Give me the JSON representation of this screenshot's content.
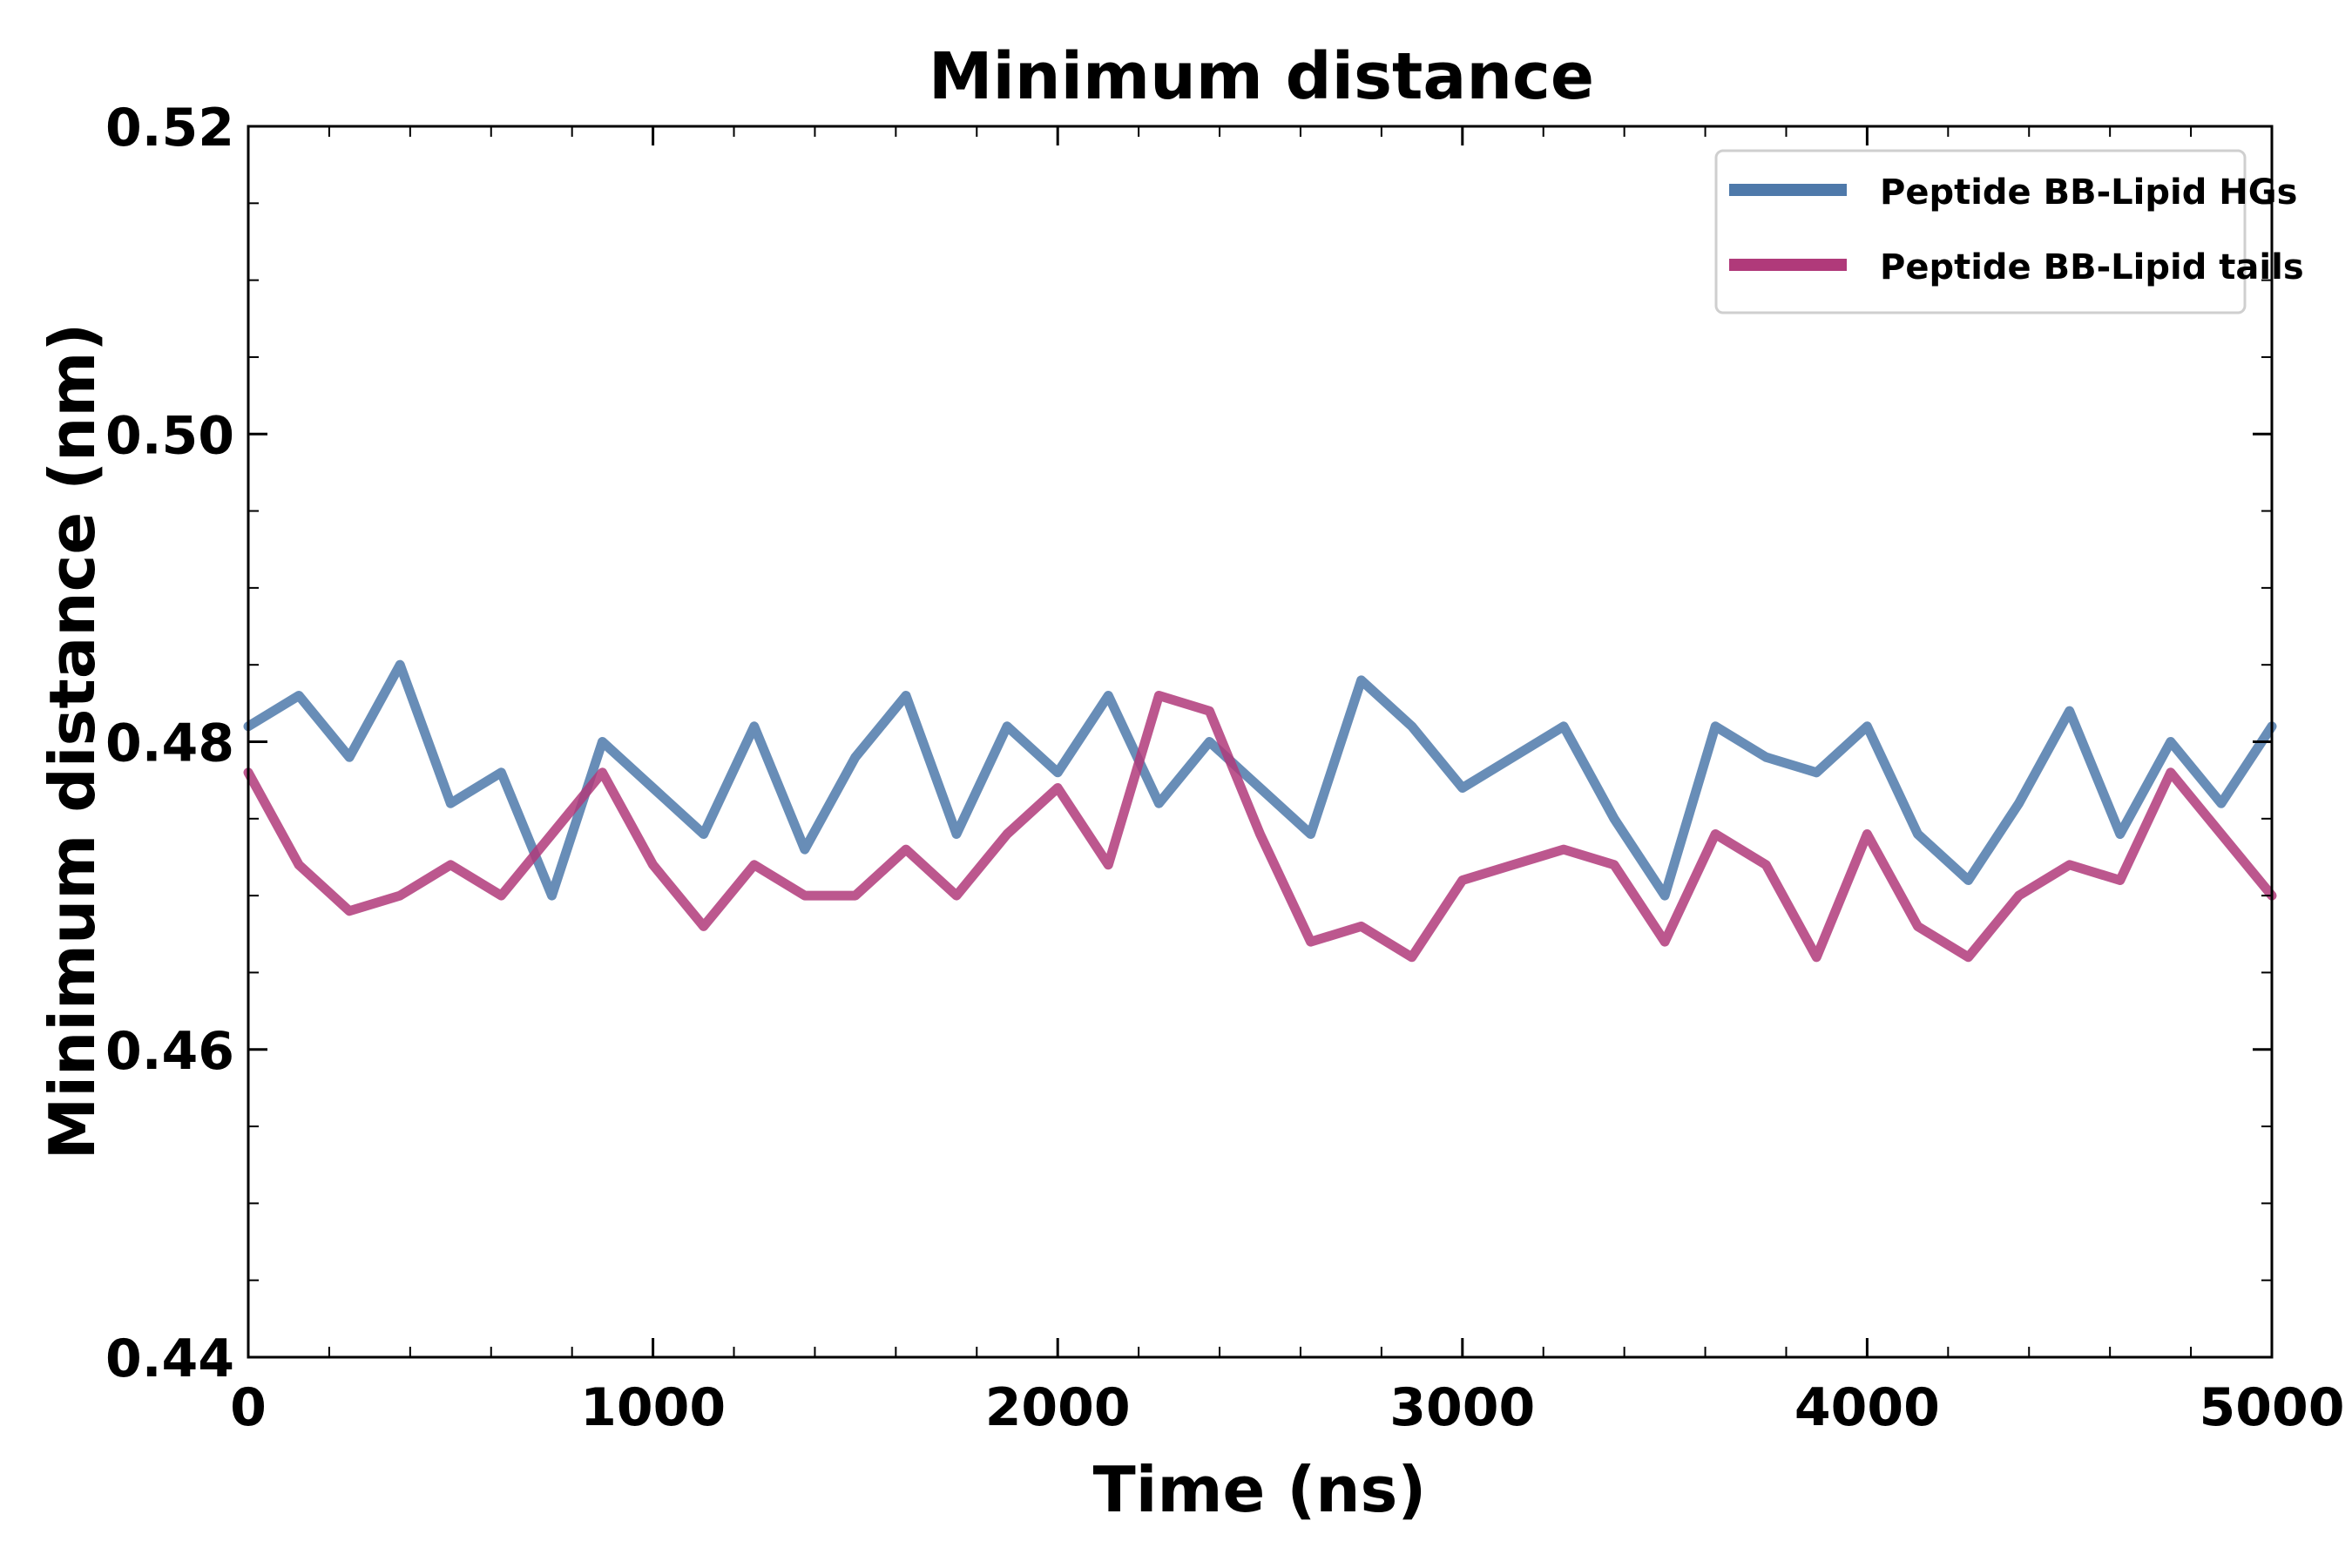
{
  "chart_data": {
    "type": "line",
    "title": "Minimum distance",
    "xlabel": "Time (ns)",
    "ylabel": "Minimum distance (nm)",
    "xlim": [
      0,
      5000
    ],
    "ylim": [
      0.44,
      0.52
    ],
    "x_ticks": [
      0,
      1000,
      2000,
      3000,
      4000,
      5000
    ],
    "x_tick_labels": [
      "0",
      "1000",
      "2000",
      "3000",
      "4000",
      "5000"
    ],
    "y_ticks": [
      0.44,
      0.46,
      0.48,
      0.5,
      0.52
    ],
    "y_tick_labels": [
      "0.44",
      "0.46",
      "0.48",
      "0.50",
      "0.52"
    ],
    "x_minor_step": 200,
    "y_minor_step": 0.005,
    "grid": false,
    "legend_position": "top-right",
    "series": [
      {
        "name": "Peptide BB-Lipid HGs",
        "color": "#4e79aa",
        "x": [
          0,
          125,
          250,
          375,
          500,
          625,
          750,
          875,
          1000,
          1125,
          1250,
          1375,
          1500,
          1625,
          1750,
          1875,
          2000,
          2125,
          2250,
          2375,
          2500,
          2625,
          2750,
          2875,
          3000,
          3125,
          3250,
          3375,
          3500,
          3625,
          3750,
          3875,
          4000,
          4125,
          4250,
          4375,
          4500,
          4625,
          4750,
          4875,
          5000
        ],
        "values": [
          0.481,
          0.483,
          0.479,
          0.485,
          0.476,
          0.478,
          0.47,
          0.48,
          0.477,
          0.474,
          0.481,
          0.473,
          0.479,
          0.483,
          0.474,
          0.481,
          0.478,
          0.483,
          0.476,
          0.48,
          0.477,
          0.474,
          0.484,
          0.481,
          0.477,
          0.479,
          0.481,
          0.475,
          0.47,
          0.481,
          0.479,
          0.478,
          0.481,
          0.474,
          0.471,
          0.476,
          0.482,
          0.474,
          0.48,
          0.476,
          0.481
        ]
      },
      {
        "name": "Peptide BB-Lipid tails",
        "color": "#b03a7a",
        "x": [
          0,
          125,
          250,
          375,
          500,
          625,
          750,
          875,
          1000,
          1125,
          1250,
          1375,
          1500,
          1625,
          1750,
          1875,
          2000,
          2125,
          2250,
          2375,
          2500,
          2625,
          2750,
          2875,
          3000,
          3125,
          3250,
          3375,
          3500,
          3625,
          3750,
          3875,
          4000,
          4125,
          4250,
          4375,
          4500,
          4625,
          4750,
          4875,
          5000
        ],
        "values": [
          0.478,
          0.472,
          0.469,
          0.47,
          0.472,
          0.47,
          0.474,
          0.478,
          0.472,
          0.468,
          0.472,
          0.47,
          0.47,
          0.473,
          0.47,
          0.474,
          0.477,
          0.472,
          0.483,
          0.482,
          0.474,
          0.467,
          0.468,
          0.466,
          0.471,
          0.472,
          0.473,
          0.472,
          0.467,
          0.474,
          0.472,
          0.466,
          0.474,
          0.468,
          0.466,
          0.47,
          0.472,
          0.471,
          0.478,
          0.474,
          0.47
        ]
      }
    ]
  }
}
